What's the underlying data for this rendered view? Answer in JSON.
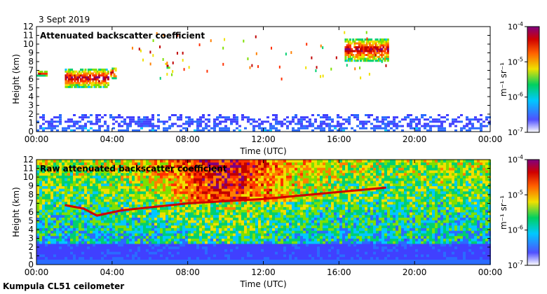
{
  "date_label": "3 Sept 2019",
  "instrument_label": "Kumpula CL51 ceilometer",
  "chart_data": [
    {
      "type": "heatmap",
      "title": "Attenuated backscatter coefficient",
      "xlabel": "Time (UTC)",
      "ylabel": "Height (km)",
      "x_ticks": [
        "00:00",
        "04:00",
        "08:00",
        "12:00",
        "16:00",
        "20:00",
        "00:00"
      ],
      "xlim_hours": [
        0,
        24
      ],
      "y_ticks": [
        0,
        1,
        2,
        3,
        4,
        5,
        6,
        7,
        8,
        9,
        10,
        11,
        12
      ],
      "ylim_km": [
        0,
        12
      ],
      "colorbar": {
        "label": "m⁻¹ sr⁻¹",
        "ticks": [
          {
            "base": "10",
            "exp": "-4"
          },
          {
            "base": "10",
            "exp": "-5"
          },
          {
            "base": "10",
            "exp": "-6"
          },
          {
            "base": "10",
            "exp": "-7"
          }
        ],
        "range_log10": [
          -7,
          -4
        ],
        "colors": [
          "#ffffff",
          "#3a3aff",
          "#00c8ff",
          "#00d060",
          "#f0e000",
          "#ff6000",
          "#d00000",
          "#800080"
        ]
      },
      "cloud_layers": [
        {
          "t_start": 0.0,
          "t_end": 0.5,
          "base_km": 6.3,
          "top_km": 6.8
        },
        {
          "t_start": 1.5,
          "t_end": 3.8,
          "base_km": 5.0,
          "top_km": 7.0
        },
        {
          "t_start": 3.9,
          "t_end": 4.2,
          "base_km": 6.0,
          "top_km": 7.2
        },
        {
          "t_start": 6.8,
          "t_end": 7.0,
          "base_km": 7.2,
          "top_km": 7.7
        },
        {
          "t_start": 16.3,
          "t_end": 18.6,
          "base_km": 8.0,
          "top_km": 10.5
        }
      ],
      "boundary_layer_top_km": 2.0
    },
    {
      "type": "heatmap",
      "title": "Raw attenuated backscatter coefficient",
      "xlabel": "Time (UTC)",
      "ylabel": "Height (km)",
      "x_ticks": [
        "00:00",
        "04:00",
        "08:00",
        "12:00",
        "16:00",
        "20:00",
        "00:00"
      ],
      "xlim_hours": [
        0,
        24
      ],
      "y_ticks": [
        0,
        1,
        2,
        3,
        4,
        5,
        6,
        7,
        8,
        9,
        10,
        11,
        12
      ],
      "ylim_km": [
        0,
        12
      ],
      "colorbar": {
        "label": "m⁻¹ sr⁻¹",
        "ticks": [
          {
            "base": "10",
            "exp": "-4"
          },
          {
            "base": "10",
            "exp": "-5"
          },
          {
            "base": "10",
            "exp": "-6"
          },
          {
            "base": "10",
            "exp": "-7"
          }
        ],
        "range_log10": [
          -7,
          -4
        ],
        "colors": [
          "#ffffff",
          "#3a3aff",
          "#00c8ff",
          "#00d060",
          "#f0e000",
          "#ff6000",
          "#d00000",
          "#800080"
        ]
      },
      "layer_line_km": [
        {
          "t": 1.5,
          "h": 6.8
        },
        {
          "t": 2.5,
          "h": 6.4
        },
        {
          "t": 3.2,
          "h": 5.6
        },
        {
          "t": 4.5,
          "h": 6.2
        },
        {
          "t": 8.0,
          "h": 7.0
        },
        {
          "t": 12.0,
          "h": 7.5
        },
        {
          "t": 16.0,
          "h": 8.3
        },
        {
          "t": 18.5,
          "h": 8.8
        }
      ],
      "boundary_layer_top_km": 2.0
    }
  ]
}
